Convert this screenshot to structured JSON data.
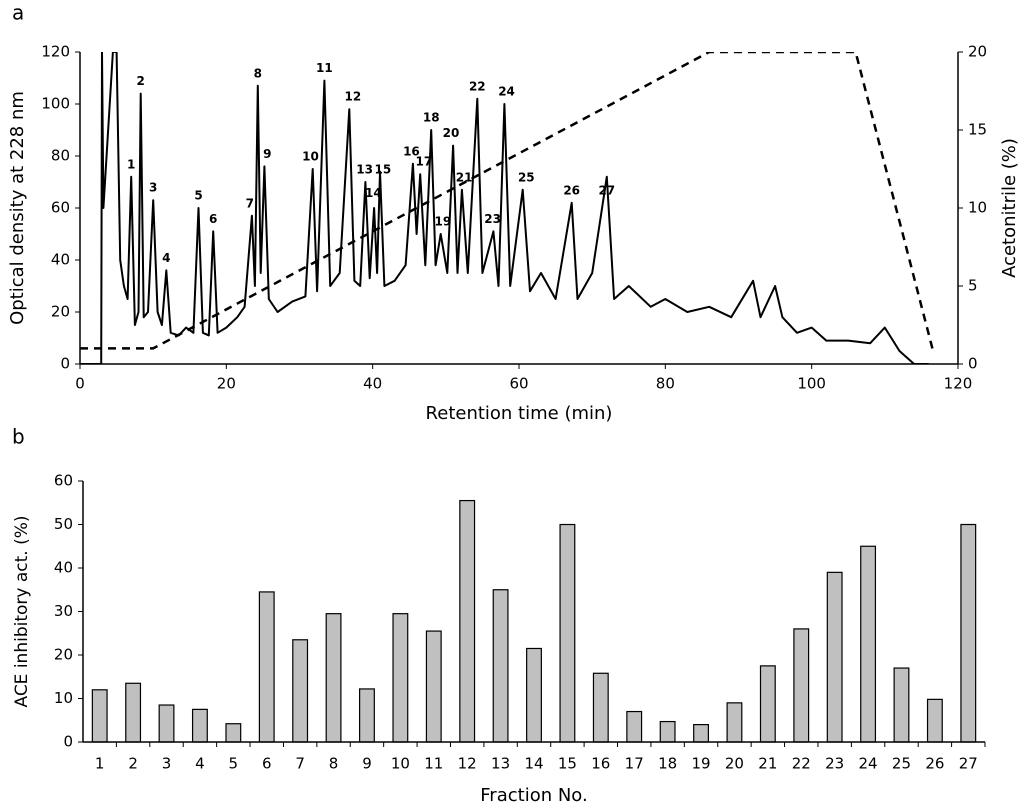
{
  "chart_data": [
    {
      "type": "line",
      "title": "a",
      "ylabel": "Optical density at 228 nm",
      "xlabel": "Retention time (min)",
      "y2label": "Acetonitrile (%)",
      "xlim": [
        0,
        120
      ],
      "xticks": [
        0,
        20,
        40,
        60,
        80,
        100,
        120
      ],
      "ylim": [
        0,
        120
      ],
      "yticks": [
        0,
        20,
        40,
        60,
        80,
        100,
        120
      ],
      "y2lim": [
        0,
        20
      ],
      "y2ticks": [
        0,
        5,
        10,
        15,
        20
      ],
      "series": [
        {
          "color": "#000000",
          "style": "solid",
          "x": [
            0,
            2.9,
            3,
            3.2,
            4.5,
            5,
            5.5,
            6,
            6.5,
            7,
            7.5,
            8,
            8.3,
            8.7,
            9.3,
            10,
            10.6,
            11.2,
            11.8,
            12.4,
            13.5,
            14.5,
            15.5,
            16.2,
            16.8,
            17.6,
            18.2,
            18.8,
            20,
            21.5,
            22.5,
            23.5,
            23.9,
            24.3,
            24.7,
            25.2,
            25.8,
            27,
            29,
            30.8,
            31.8,
            32.4,
            33.4,
            34.2,
            35.5,
            36.8,
            37.5,
            38.3,
            39,
            39.6,
            40.2,
            40.6,
            41,
            41.6,
            43,
            44.5,
            45.5,
            46,
            46.5,
            47.2,
            48,
            48.6,
            49.3,
            50.2,
            51,
            51.6,
            52.2,
            53,
            54.3,
            55,
            56.5,
            57.2,
            58,
            58.8,
            60.5,
            61.5,
            63,
            65,
            67.2,
            68,
            70,
            72,
            73,
            75,
            78,
            80,
            83,
            86,
            89,
            92,
            93,
            95,
            96,
            98,
            100,
            102,
            105,
            108,
            110,
            112,
            114,
            116
          ],
          "values": [
            0,
            0,
            120,
            60,
            120,
            120,
            40,
            30,
            25,
            72,
            15,
            20,
            104,
            18,
            20,
            63,
            20,
            15,
            36,
            12,
            11,
            14,
            12,
            60,
            12,
            11,
            51,
            12,
            14,
            18,
            22,
            57,
            30,
            107,
            35,
            76,
            25,
            20,
            24,
            26,
            75,
            28,
            109,
            30,
            35,
            98,
            32,
            30,
            70,
            33,
            60,
            35,
            74,
            30,
            32,
            38,
            77,
            50,
            73,
            38,
            90,
            38,
            50,
            35,
            84,
            35,
            67,
            35,
            102,
            35,
            51,
            30,
            100,
            30,
            67,
            28,
            35,
            25,
            62,
            25,
            35,
            72,
            25,
            30,
            22,
            25,
            20,
            22,
            18,
            32,
            18,
            30,
            18,
            12,
            14,
            9,
            9,
            8,
            14,
            5,
            0,
            0
          ]
        },
        {
          "color": "#000000",
          "style": "dashed",
          "axis": "y2",
          "x": [
            0,
            10,
            86,
            106,
            116.5
          ],
          "values": [
            1,
            1,
            20,
            20,
            1
          ]
        }
      ],
      "annotations": [
        {
          "text": "1",
          "x": 7,
          "y": 72
        },
        {
          "text": "2",
          "x": 8.3,
          "y": 104
        },
        {
          "text": "3",
          "x": 10,
          "y": 63
        },
        {
          "text": "4",
          "x": 11.8,
          "y": 36
        },
        {
          "text": "5",
          "x": 16.2,
          "y": 60
        },
        {
          "text": "6",
          "x": 18.2,
          "y": 51
        },
        {
          "text": "7",
          "x": 23.2,
          "y": 57
        },
        {
          "text": "8",
          "x": 24.3,
          "y": 107
        },
        {
          "text": "9",
          "x": 25.6,
          "y": 76
        },
        {
          "text": "10",
          "x": 31.5,
          "y": 75
        },
        {
          "text": "11",
          "x": 33.4,
          "y": 109
        },
        {
          "text": "12",
          "x": 37.3,
          "y": 98
        },
        {
          "text": "13",
          "x": 38.9,
          "y": 70
        },
        {
          "text": "14",
          "x": 40.1,
          "y": 61
        },
        {
          "text": "15",
          "x": 41.4,
          "y": 70
        },
        {
          "text": "16",
          "x": 45.3,
          "y": 77
        },
        {
          "text": "17",
          "x": 47,
          "y": 73
        },
        {
          "text": "18",
          "x": 48,
          "y": 90
        },
        {
          "text": "19",
          "x": 49.6,
          "y": 50
        },
        {
          "text": "20",
          "x": 50.7,
          "y": 84
        },
        {
          "text": "21",
          "x": 52.5,
          "y": 67
        },
        {
          "text": "22",
          "x": 54.3,
          "y": 102
        },
        {
          "text": "23",
          "x": 56.4,
          "y": 51
        },
        {
          "text": "24",
          "x": 58.3,
          "y": 100
        },
        {
          "text": "25",
          "x": 61,
          "y": 67
        },
        {
          "text": "26",
          "x": 67.2,
          "y": 62
        },
        {
          "text": "27",
          "x": 72,
          "y": 62
        }
      ]
    },
    {
      "type": "bar",
      "title": "b",
      "ylabel": "ACE inhibitory act. (%)",
      "xlabel": "Fraction No.",
      "categories": [
        "1",
        "2",
        "3",
        "4",
        "5",
        "6",
        "7",
        "8",
        "9",
        "10",
        "11",
        "12",
        "13",
        "14",
        "15",
        "16",
        "17",
        "18",
        "19",
        "20",
        "21",
        "22",
        "23",
        "24",
        "25",
        "26",
        "27"
      ],
      "values": [
        12,
        13.5,
        8.5,
        7.5,
        4.2,
        34.5,
        23.5,
        29.5,
        12.2,
        29.5,
        25.5,
        55.5,
        35,
        21.5,
        50,
        15.8,
        7,
        4.7,
        4,
        9,
        17.5,
        26,
        39,
        45,
        17,
        9.8,
        50
      ],
      "color": "#c0c0c0",
      "ylim": [
        0,
        60
      ],
      "yticks": [
        0,
        10,
        20,
        30,
        40,
        50,
        60
      ]
    }
  ]
}
